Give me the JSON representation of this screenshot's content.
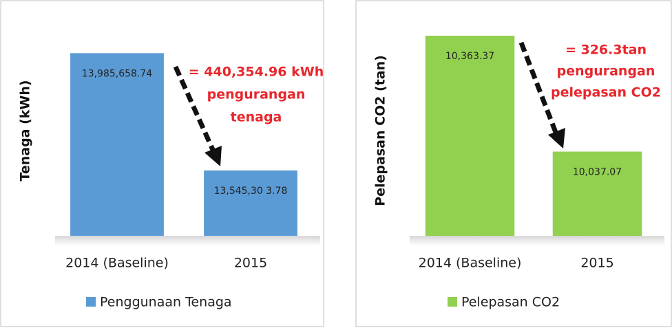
{
  "chart_data": [
    {
      "type": "bar",
      "y_label": "Tenaga (kWh)",
      "categories": [
        "2014 (Baseline)",
        "2015"
      ],
      "series": [
        {
          "name": "Penggunaan Tenaga",
          "color": "#5b9bd5",
          "values": [
            13985658.74,
            13545303.78
          ],
          "value_labels": [
            "13,985,658.74",
            "13,545,30 3.78"
          ]
        }
      ],
      "ylim": [
        13300000,
        14100000
      ],
      "annotation": [
        "= 440,354.96 kWh",
        "pengurangan",
        "tenaga"
      ]
    },
    {
      "type": "bar",
      "y_label": "Pelepasan CO2 (tan)",
      "categories": [
        "2014 (Baseline)",
        "2015"
      ],
      "series": [
        {
          "name": "Pelepasan CO2",
          "color": "#92d050",
          "values": [
            10363.37,
            10037.07
          ],
          "value_labels": [
            "10,363.37",
            "10,037.07"
          ]
        }
      ],
      "ylim": [
        9800,
        10400
      ],
      "annotation": [
        "= 326.3tan",
        "pengurangan",
        "pelepasan CO2"
      ]
    }
  ]
}
